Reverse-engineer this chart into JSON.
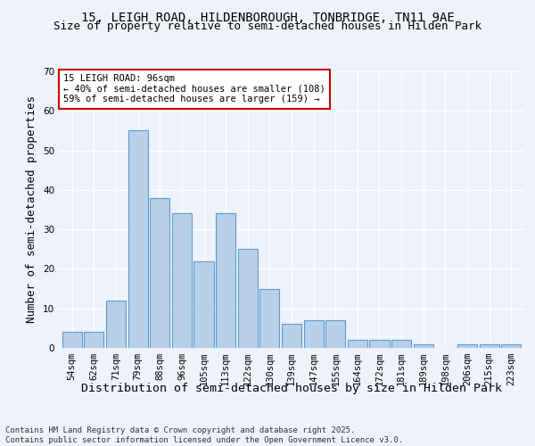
{
  "title_line1": "15, LEIGH ROAD, HILDENBOROUGH, TONBRIDGE, TN11 9AE",
  "title_line2": "Size of property relative to semi-detached houses in Hilden Park",
  "xlabel": "Distribution of semi-detached houses by size in Hilden Park",
  "ylabel": "Number of semi-detached properties",
  "categories": [
    "54sqm",
    "62sqm",
    "71sqm",
    "79sqm",
    "88sqm",
    "96sqm",
    "105sqm",
    "113sqm",
    "122sqm",
    "130sqm",
    "139sqm",
    "147sqm",
    "155sqm",
    "164sqm",
    "172sqm",
    "181sqm",
    "189sqm",
    "198sqm",
    "206sqm",
    "215sqm",
    "223sqm"
  ],
  "values": [
    4,
    4,
    12,
    55,
    38,
    34,
    22,
    34,
    25,
    15,
    6,
    7,
    7,
    2,
    2,
    2,
    1,
    0,
    1,
    1,
    1
  ],
  "bar_color": "#b8d0e8",
  "bar_edge_color": "#5b9bd5",
  "ylim": [
    0,
    70
  ],
  "yticks": [
    0,
    10,
    20,
    30,
    40,
    50,
    60,
    70
  ],
  "annotation_title": "15 LEIGH ROAD: 96sqm",
  "annotation_line2": "← 40% of semi-detached houses are smaller (108)",
  "annotation_line3": "59% of semi-detached houses are larger (159) →",
  "annotation_box_color": "#ffffff",
  "annotation_box_edge": "#cc0000",
  "footer_line1": "Contains HM Land Registry data © Crown copyright and database right 2025.",
  "footer_line2": "Contains public sector information licensed under the Open Government Licence v3.0.",
  "bg_color": "#eef2fa",
  "grid_color": "#ffffff",
  "title_fontsize": 10,
  "subtitle_fontsize": 9,
  "axis_label_fontsize": 9,
  "tick_fontsize": 7.5,
  "annotation_fontsize": 7.5,
  "footer_fontsize": 6.5
}
